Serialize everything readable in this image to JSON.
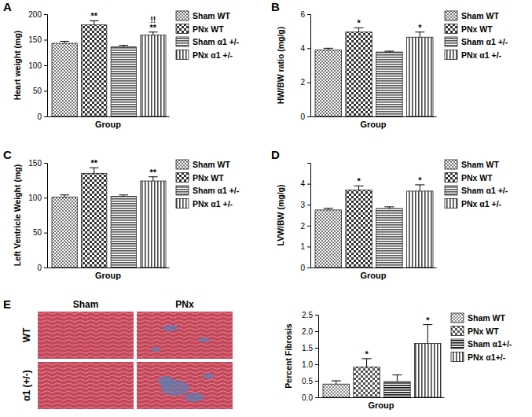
{
  "chart_data": [
    {
      "type": "bar",
      "title": "A",
      "y_label": "Heart weight (mg)",
      "x_label": "Group",
      "categories": [
        "Sham WT",
        "PNx WT",
        "Sham α1 +/-",
        "PNx α1 +/-"
      ],
      "values": [
        143,
        179,
        136,
        159
      ],
      "errors": [
        4,
        8,
        3,
        6
      ],
      "colors": [
        "#777777",
        "#333333",
        "#555555",
        "#444444"
      ],
      "annotations": [
        {
          "index": 1,
          "text": "**"
        },
        {
          "index": 3,
          "text": "**"
        },
        {
          "index": 3,
          "text": "!!"
        }
      ],
      "ylim": [
        0,
        200
      ],
      "yticks": [
        0,
        50,
        100,
        150,
        200
      ],
      "legend": "right",
      "tick_labels": "y"
    },
    {
      "type": "bar",
      "title": "B",
      "y_label": "HW/BW ratio (mg/g)",
      "x_label": "Group",
      "categories": [
        "Sham WT",
        "PNx WT",
        "Sham α1 +/-",
        "PNx α1 +/-"
      ],
      "values": [
        3.9,
        4.95,
        3.78,
        4.65
      ],
      "errors": [
        0.1,
        0.25,
        0.05,
        0.3
      ],
      "colors": [
        "#777777",
        "#333333",
        "#555555",
        "#444444"
      ],
      "annotations": [
        {
          "index": 1,
          "text": "*"
        },
        {
          "index": 3,
          "text": "*"
        }
      ],
      "ylim": [
        0,
        6
      ],
      "yticks": [
        0,
        2,
        4,
        6
      ],
      "legend": "right",
      "tick_labels": "y"
    },
    {
      "type": "bar",
      "title": "C",
      "y_label": "Left Ventricle Weight (mg)",
      "x_label": "Group",
      "categories": [
        "Sham WT",
        "PNx WT",
        "Sham α1 +/-",
        "PNx α1 +/-"
      ],
      "values": [
        101,
        135,
        102,
        124
      ],
      "errors": [
        3,
        8,
        2,
        6
      ],
      "colors": [
        "#777777",
        "#333333",
        "#555555",
        "#444444"
      ],
      "annotations": [
        {
          "index": 1,
          "text": "**"
        },
        {
          "index": 3,
          "text": "**"
        }
      ],
      "ylim": [
        0,
        150
      ],
      "yticks": [
        0,
        50,
        100,
        150
      ],
      "legend": "right",
      "tick_labels": "y"
    },
    {
      "type": "bar",
      "title": "D",
      "y_label": "LVW/BW (mg/g)",
      "x_label": "Group",
      "categories": [
        "Sham WT",
        "PNx WT",
        "Sham α1 +/-",
        "PNx α1 +/-"
      ],
      "values": [
        2.75,
        3.7,
        2.82,
        3.65
      ],
      "errors": [
        0.08,
        0.2,
        0.08,
        0.3
      ],
      "colors": [
        "#777777",
        "#333333",
        "#555555",
        "#444444"
      ],
      "annotations": [
        {
          "index": 1,
          "text": "*"
        },
        {
          "index": 3,
          "text": "*"
        }
      ],
      "ylim": [
        0,
        5
      ],
      "yticks": [
        0,
        1,
        2,
        3,
        4
      ],
      "legend": "right",
      "tick_labels": "y"
    },
    {
      "type": "image_grid",
      "title": "E",
      "columns": [
        "Sham",
        "PNx"
      ],
      "rows": [
        "WT",
        "α1 (+/-)"
      ]
    },
    {
      "type": "bar",
      "y_label": "Percent Fibrosis",
      "x_label": "Group",
      "categories": [
        "Sham WT",
        "PNx WT",
        "Sham α1+/-",
        "PNx α1+/-"
      ],
      "values": [
        0.4,
        0.92,
        0.48,
        1.63
      ],
      "errors": [
        0.1,
        0.25,
        0.2,
        0.57
      ],
      "colors": [
        "#888888",
        "#555555",
        "#111111",
        "#444444"
      ],
      "annotations": [
        {
          "index": 1,
          "text": "*"
        },
        {
          "index": 3,
          "text": "*"
        }
      ],
      "ylim": [
        0,
        2.5
      ],
      "yticks": [
        {
          "value": 0,
          "label": "0.0"
        },
        0.5,
        {
          "value": 1,
          "label": "1.0"
        },
        1.5,
        {
          "value": 2,
          "label": "2.0"
        },
        2.5
      ],
      "legend": "right",
      "tick_labels": "y"
    }
  ]
}
